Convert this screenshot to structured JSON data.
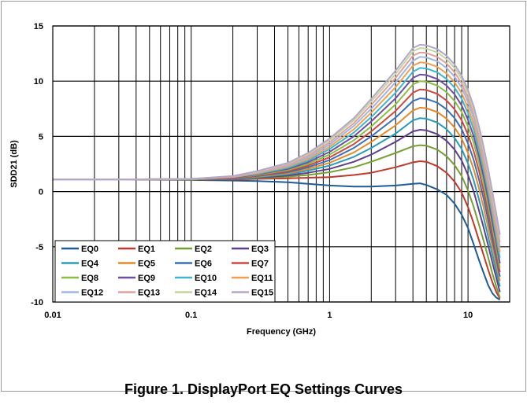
{
  "figure": {
    "caption": "Figure 1. DisplayPort EQ Settings Curves"
  },
  "chart_data": {
    "type": "line",
    "title": "",
    "xlabel": "Frequency (GHz)",
    "ylabel": "SDD21 (dB)",
    "xscale": "log",
    "xlim": [
      0.01,
      20
    ],
    "ylim": [
      -10,
      15
    ],
    "x_ticks": [
      0.01,
      0.1,
      1,
      10
    ],
    "x_tick_labels": [
      "0.01",
      "0.1",
      "1",
      "10"
    ],
    "y_ticks": [
      -10,
      -5,
      0,
      5,
      10,
      15
    ],
    "y_tick_labels": [
      "-10",
      "-5",
      "0",
      "5",
      "10",
      "15"
    ],
    "grid": true,
    "legend_position": "bottom-left",
    "x": [
      0.01,
      0.03,
      0.1,
      0.2,
      0.3,
      0.5,
      0.7,
      1,
      1.5,
      2,
      3,
      4,
      4.5,
      5,
      6,
      7,
      8,
      9,
      10,
      11,
      12,
      13,
      14,
      15,
      16,
      17
    ],
    "series": [
      {
        "name": "EQ0",
        "color": "#1f5c99",
        "values": [
          1.1,
          1.1,
          1.05,
          1.0,
          0.95,
          0.85,
          0.7,
          0.55,
          0.45,
          0.45,
          0.55,
          0.7,
          0.75,
          0.6,
          0.2,
          -0.3,
          -1.1,
          -2.1,
          -3.3,
          -4.8,
          -6.2,
          -7.4,
          -8.5,
          -9.2,
          -9.6,
          -9.8
        ]
      },
      {
        "name": "EQ1",
        "color": "#c0392b",
        "values": [
          1.1,
          1.1,
          1.1,
          1.1,
          1.15,
          1.2,
          1.25,
          1.3,
          1.5,
          1.7,
          2.2,
          2.65,
          2.75,
          2.7,
          2.3,
          1.7,
          0.9,
          -0.1,
          -1.4,
          -2.9,
          -4.4,
          -5.8,
          -7.1,
          -8.2,
          -9.1,
          -9.7
        ]
      },
      {
        "name": "EQ2",
        "color": "#77a033",
        "values": [
          1.1,
          1.1,
          1.1,
          1.15,
          1.2,
          1.35,
          1.5,
          1.75,
          2.2,
          2.7,
          3.5,
          4.1,
          4.2,
          4.15,
          3.8,
          3.2,
          2.4,
          1.4,
          0.1,
          -1.4,
          -3.0,
          -4.5,
          -6.0,
          -7.4,
          -8.6,
          -9.6
        ]
      },
      {
        "name": "EQ3",
        "color": "#5e3f8c",
        "values": [
          1.1,
          1.1,
          1.1,
          1.15,
          1.25,
          1.45,
          1.7,
          2.05,
          2.7,
          3.35,
          4.5,
          5.45,
          5.6,
          5.55,
          5.2,
          4.6,
          3.8,
          2.8,
          1.5,
          0.0,
          -1.7,
          -3.3,
          -4.9,
          -6.4,
          -7.8,
          -9.1
        ]
      },
      {
        "name": "EQ4",
        "color": "#2a9bb8",
        "values": [
          1.1,
          1.1,
          1.1,
          1.15,
          1.3,
          1.55,
          1.9,
          2.35,
          3.15,
          3.95,
          5.25,
          6.45,
          6.65,
          6.6,
          6.25,
          5.65,
          4.85,
          3.85,
          2.55,
          1.0,
          -0.7,
          -2.4,
          -4.1,
          -5.7,
          -7.2,
          -8.6
        ]
      },
      {
        "name": "EQ5",
        "color": "#e38b2b",
        "values": [
          1.1,
          1.1,
          1.1,
          1.2,
          1.35,
          1.65,
          2.05,
          2.6,
          3.55,
          4.5,
          6.0,
          7.35,
          7.6,
          7.55,
          7.2,
          6.6,
          5.8,
          4.8,
          3.5,
          2.0,
          0.3,
          -1.5,
          -3.3,
          -5.0,
          -6.6,
          -8.1
        ]
      },
      {
        "name": "EQ6",
        "color": "#3a70b6",
        "values": [
          1.1,
          1.1,
          1.1,
          1.2,
          1.4,
          1.75,
          2.2,
          2.85,
          3.95,
          5.0,
          6.7,
          8.2,
          8.45,
          8.4,
          8.05,
          7.45,
          6.65,
          5.65,
          4.35,
          2.85,
          1.1,
          -0.7,
          -2.6,
          -4.4,
          -6.1,
          -7.7
        ]
      },
      {
        "name": "EQ7",
        "color": "#d04640",
        "values": [
          1.1,
          1.1,
          1.1,
          1.2,
          1.45,
          1.85,
          2.35,
          3.1,
          4.3,
          5.45,
          7.3,
          8.95,
          9.25,
          9.2,
          8.85,
          8.25,
          7.45,
          6.45,
          5.15,
          3.65,
          1.9,
          0.0,
          -1.9,
          -3.8,
          -5.6,
          -7.3
        ]
      },
      {
        "name": "EQ8",
        "color": "#8cbd41",
        "values": [
          1.1,
          1.1,
          1.1,
          1.25,
          1.5,
          1.95,
          2.5,
          3.35,
          4.65,
          5.9,
          7.9,
          9.7,
          10.0,
          9.95,
          9.6,
          9.0,
          8.2,
          7.2,
          5.9,
          4.4,
          2.6,
          0.7,
          -1.3,
          -3.2,
          -5.1,
          -6.9
        ]
      },
      {
        "name": "EQ9",
        "color": "#6e4fa3",
        "values": [
          1.1,
          1.1,
          1.15,
          1.25,
          1.55,
          2.05,
          2.65,
          3.6,
          5.0,
          6.35,
          8.45,
          10.3,
          10.6,
          10.55,
          10.2,
          9.6,
          8.8,
          7.8,
          6.5,
          5.0,
          3.2,
          1.3,
          -0.7,
          -2.7,
          -4.6,
          -6.5
        ]
      },
      {
        "name": "EQ10",
        "color": "#3fb6d0",
        "values": [
          1.1,
          1.1,
          1.15,
          1.3,
          1.6,
          2.15,
          2.8,
          3.85,
          5.35,
          6.75,
          8.95,
          10.85,
          11.2,
          11.15,
          10.8,
          10.2,
          9.4,
          8.4,
          7.1,
          5.6,
          3.8,
          1.9,
          -0.1,
          -2.1,
          -4.1,
          -6.0
        ]
      },
      {
        "name": "EQ11",
        "color": "#f0a050",
        "values": [
          1.1,
          1.1,
          1.15,
          1.3,
          1.65,
          2.25,
          2.95,
          4.05,
          5.65,
          7.15,
          9.45,
          11.4,
          11.7,
          11.65,
          11.3,
          10.7,
          9.9,
          8.9,
          7.6,
          6.1,
          4.3,
          2.4,
          0.4,
          -1.6,
          -3.6,
          -5.5
        ]
      },
      {
        "name": "EQ12",
        "color": "#9fb6e0",
        "values": [
          1.1,
          1.1,
          1.15,
          1.35,
          1.7,
          2.35,
          3.1,
          4.25,
          5.95,
          7.5,
          9.9,
          11.85,
          12.2,
          12.15,
          11.8,
          11.2,
          10.4,
          9.4,
          8.1,
          6.6,
          4.8,
          2.9,
          0.9,
          -1.1,
          -3.1,
          -5.0
        ]
      },
      {
        "name": "EQ13",
        "color": "#e2a09c",
        "values": [
          1.1,
          1.1,
          1.15,
          1.35,
          1.75,
          2.45,
          3.25,
          4.45,
          6.2,
          7.85,
          10.3,
          12.3,
          12.6,
          12.55,
          12.2,
          11.6,
          10.8,
          9.8,
          8.5,
          7.0,
          5.2,
          3.3,
          1.3,
          -0.7,
          -2.7,
          -4.6
        ]
      },
      {
        "name": "EQ14",
        "color": "#c4d6a0",
        "values": [
          1.1,
          1.1,
          1.15,
          1.4,
          1.8,
          2.55,
          3.4,
          4.65,
          6.45,
          8.15,
          10.65,
          12.7,
          13.0,
          12.95,
          12.6,
          12.0,
          11.2,
          10.2,
          8.9,
          7.4,
          5.6,
          3.7,
          1.7,
          -0.3,
          -2.3,
          -4.2
        ]
      },
      {
        "name": "EQ15",
        "color": "#b4a6cc",
        "values": [
          1.1,
          1.1,
          1.15,
          1.4,
          1.85,
          2.6,
          3.5,
          4.8,
          6.65,
          8.4,
          10.95,
          13.0,
          13.3,
          13.25,
          12.9,
          12.3,
          11.5,
          10.5,
          9.2,
          7.7,
          5.9,
          4.0,
          2.0,
          0.0,
          -2.0,
          -3.9
        ]
      }
    ]
  }
}
